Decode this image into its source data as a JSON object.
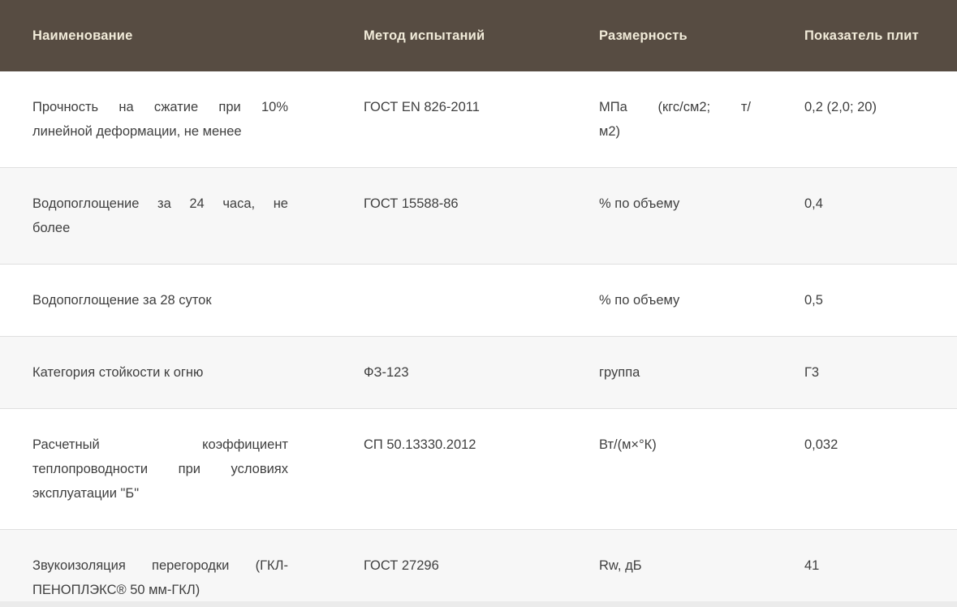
{
  "colors": {
    "header_bg": "#574c42",
    "header_text": "#f1ebd9",
    "row_alt_bg": "#f7f7f7",
    "border": "#e0e0e0",
    "body_text": "#3f3f3f"
  },
  "table": {
    "columns": [
      {
        "label": "Наименование"
      },
      {
        "label": "Метод испытаний"
      },
      {
        "label": "Размерность"
      },
      {
        "label": "Показатель плит"
      }
    ],
    "rows": [
      {
        "name": [
          "Прочность на сжатие при 10%",
          "линейной деформации, не менее"
        ],
        "method": "ГОСТ EN 826-2011",
        "unit": [
          "МПа (кгс/см2; т/",
          "м2)"
        ],
        "value": "0,2 (2,0; 20)"
      },
      {
        "name": [
          "Водопоглощение за 24 часа, не",
          "более"
        ],
        "method": "ГОСТ 15588-86",
        "unit": "% по объему",
        "value": "0,4"
      },
      {
        "name": "Водопоглощение за 28 суток",
        "method": "",
        "unit": "% по объему",
        "value": "0,5"
      },
      {
        "name": "Категория стойкости к огню",
        "method": "ФЗ-123",
        "unit": "группа",
        "value": "Г3"
      },
      {
        "name": [
          "Расчетный коэффициент",
          "теплопроводности при условиях",
          "эксплуатации \"Б\""
        ],
        "method": "СП 50.13330.2012",
        "unit": "Вт/(м×°К)",
        "value": "0,032"
      },
      {
        "name": [
          "Звукоизоляция перегородки (ГКЛ-",
          "ПЕНОПЛЭКС® 50 мм-ГКЛ)"
        ],
        "method": "ГОСТ 27296",
        "unit": "Rw, дБ",
        "value": "41"
      }
    ]
  }
}
